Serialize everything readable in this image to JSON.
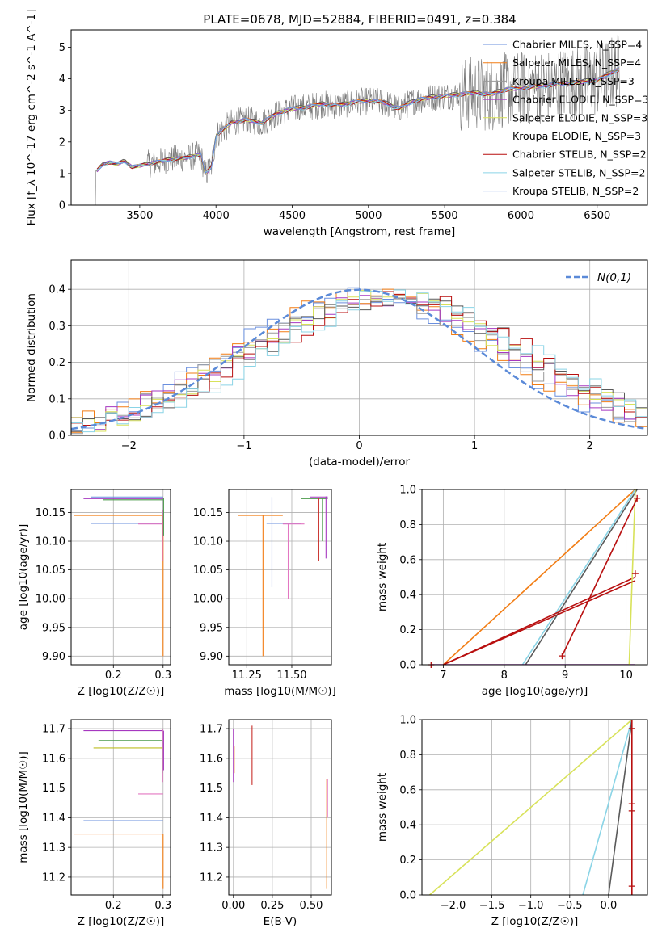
{
  "figure": {
    "title": "PLATE=0678, MJD=52884, FIBERID=0491, z=0.384"
  },
  "colors": {
    "series": [
      "#6a8fde",
      "#f27d14",
      "#999999",
      "#a638c0",
      "#d8e25a",
      "#5a5a5a",
      "#b80f0f",
      "#8ad4e6"
    ],
    "ssp_marks": [
      "#6a8fde",
      "#f27d14",
      "#4a9a4a",
      "#c9302c",
      "#a638c0",
      "#8b5a40",
      "#e377c2",
      "#7f7f7f",
      "#bcbd22",
      "#17becf"
    ]
  },
  "legend_spectrum": [
    "Chabrier MILES, N_SSP=4",
    "Salpeter MILES, N_SSP=4",
    "Kroupa MILES, N_SSP=3",
    "Chabrier ELODIE, N_SSP=3",
    "Salpeter ELODIE, N_SSP=3",
    "Kroupa ELODIE, N_SSP=3",
    "Chabrier STELIB, N_SSP=2",
    "Salpeter STELIB, N_SSP=2",
    "Kroupa STELIB, N_SSP=2"
  ],
  "chart_data": [
    {
      "id": "spectrum",
      "type": "line",
      "xlabel": "wavelength [Angstrom, rest frame]",
      "ylabel": "Flux [f_λ 10^-17 erg cm^-2 s^-1 A^-1]",
      "xlim": [
        3050,
        6830
      ],
      "ylim": [
        0,
        5.55
      ],
      "xticks": [
        3500,
        4000,
        4500,
        5000,
        5500,
        6000,
        6500
      ],
      "yticks": [
        0,
        1,
        2,
        3,
        4,
        5
      ],
      "grid": false,
      "legend_position": "right",
      "model_x": [
        3220,
        3260,
        3300,
        3350,
        3400,
        3450,
        3500,
        3550,
        3600,
        3700,
        3800,
        3900,
        3930,
        3970,
        4000,
        4100,
        4200,
        4300,
        4400,
        4500,
        4600,
        4700,
        4800,
        4900,
        5000,
        5100,
        5200,
        5300,
        5400,
        5500,
        5600,
        5700,
        5800,
        5900,
        6000,
        6100,
        6200,
        6300,
        6400,
        6500,
        6600,
        6650
      ],
      "model_y": [
        1.1,
        1.3,
        1.35,
        1.3,
        1.4,
        1.2,
        1.25,
        1.3,
        1.35,
        1.45,
        1.5,
        1.6,
        1.0,
        1.2,
        2.2,
        2.6,
        2.7,
        2.6,
        2.9,
        3.05,
        3.1,
        3.2,
        3.15,
        3.25,
        3.3,
        3.25,
        3.05,
        3.3,
        3.4,
        3.45,
        3.5,
        3.55,
        3.5,
        3.65,
        3.7,
        3.75,
        3.8,
        3.85,
        3.9,
        3.95,
        4.2,
        4.3
      ],
      "series_offsets": [
        0.08,
        0.12,
        0.15,
        0.0,
        0.05,
        0.2,
        -0.05,
        -0.12,
        0.1
      ]
    },
    {
      "id": "residuals",
      "type": "line",
      "xlabel": "(data-model)/error",
      "ylabel": "Normed distribution",
      "xlim": [
        -2.5,
        2.5
      ],
      "ylim": [
        0,
        0.48
      ],
      "xticks": [
        -2,
        -1,
        0,
        1,
        2
      ],
      "yticks": [
        0.0,
        0.1,
        0.2,
        0.3,
        0.4
      ],
      "grid": true,
      "legend": "N(0,1)",
      "legend_position": "top-right",
      "gaussian": {
        "mean": 0,
        "sigma": 1,
        "color": "#5b8ad8"
      },
      "hist_bin_width": 0.1,
      "hist_shape_peak": 0.38
    },
    {
      "id": "age-vs-Z",
      "type": "scatter",
      "xlabel": "Z [log10(Z/Z☉)]",
      "ylabel": "age  [log10(age/yr)]",
      "xlim": [
        0.115,
        0.315
      ],
      "ylim": [
        9.885,
        10.19
      ],
      "xticks": [
        0.2,
        0.3
      ],
      "yticks": [
        9.9,
        9.95,
        10.0,
        10.05,
        10.1,
        10.15
      ],
      "grid": true,
      "hlines": [
        {
          "y": 10.177,
          "x0": 0.155,
          "x1": 0.3,
          "c": 0
        },
        {
          "y": 10.174,
          "x0": 0.14,
          "x1": 0.3,
          "c": 4
        },
        {
          "y": 10.172,
          "x0": 0.18,
          "x1": 0.3,
          "c": 2
        },
        {
          "y": 10.145,
          "x0": 0.12,
          "x1": 0.3,
          "c": 1
        },
        {
          "y": 10.131,
          "x0": 0.155,
          "x1": 0.3,
          "c": 0
        },
        {
          "y": 10.13,
          "x0": 0.25,
          "x1": 0.3,
          "c": 6
        }
      ],
      "vlines": [
        {
          "x": 0.3,
          "y0": 9.9,
          "y1": 10.145,
          "c": 1
        },
        {
          "x": 0.299,
          "y0": 10.065,
          "y1": 10.155,
          "c": 6
        },
        {
          "x": 0.298,
          "y0": 10.1,
          "y1": 10.177,
          "c": 4
        },
        {
          "x": 0.301,
          "y0": 10.11,
          "y1": 10.175,
          "c": 2
        }
      ]
    },
    {
      "id": "age-vs-mass",
      "type": "scatter",
      "xlabel": "mass [log10(M/M☉)]",
      "ylabel": "",
      "xlim": [
        11.15,
        11.72
      ],
      "ylim": [
        9.885,
        10.19
      ],
      "xticks": [
        11.25,
        11.5
      ],
      "yticks": [
        9.9,
        9.95,
        10.0,
        10.05,
        10.1,
        10.15
      ],
      "grid": true,
      "hlines": [
        {
          "y": 10.145,
          "x0": 11.2,
          "x1": 11.45,
          "c": 1
        },
        {
          "y": 10.131,
          "x0": 11.36,
          "x1": 11.55,
          "c": 0
        },
        {
          "y": 10.13,
          "x0": 11.45,
          "x1": 11.57,
          "c": 6
        },
        {
          "y": 10.177,
          "x0": 11.6,
          "x1": 11.7,
          "c": 4
        },
        {
          "y": 10.174,
          "x0": 11.55,
          "x1": 11.7,
          "c": 2
        }
      ],
      "vlines": [
        {
          "x": 11.34,
          "y0": 9.9,
          "y1": 10.145,
          "c": 1
        },
        {
          "x": 11.39,
          "y0": 10.02,
          "y1": 10.177,
          "c": 0
        },
        {
          "x": 11.48,
          "y0": 10.0,
          "y1": 10.13,
          "c": 6
        },
        {
          "x": 11.65,
          "y0": 10.065,
          "y1": 10.175,
          "c": 3
        },
        {
          "x": 11.69,
          "y0": 10.07,
          "y1": 10.178,
          "c": 4
        },
        {
          "x": 11.67,
          "y0": 10.1,
          "y1": 10.175,
          "c": 2
        }
      ]
    },
    {
      "id": "massweight-vs-age",
      "type": "line",
      "xlabel": "age  [log10(age/yr)]",
      "ylabel": "mass weight",
      "xlim": [
        6.65,
        10.35
      ],
      "ylim": [
        0,
        1.0
      ],
      "xticks": [
        7,
        8,
        9,
        10
      ],
      "yticks": [
        0.0,
        0.2,
        0.4,
        0.6,
        0.8,
        1.0
      ],
      "grid": true,
      "curves": [
        {
          "x": [
            7.0,
            10.15
          ],
          "y": [
            0.0,
            1.0
          ],
          "c": 1
        },
        {
          "x": [
            8.3,
            10.15
          ],
          "y": [
            0.0,
            1.0
          ],
          "c": 7
        },
        {
          "x": [
            8.35,
            10.18
          ],
          "y": [
            0.0,
            1.0
          ],
          "c": 5
        },
        {
          "x": [
            7.0,
            10.15
          ],
          "y": [
            0.0,
            0.5
          ],
          "c": 6
        },
        {
          "x": [
            6.8,
            10.15
          ],
          "y": [
            0.0,
            0.0
          ],
          "c": 3
        },
        {
          "x": [
            10.05,
            10.15
          ],
          "y": [
            0.0,
            1.0
          ],
          "c": 4
        },
        {
          "x": [
            8.95,
            10.18
          ],
          "y": [
            0.05,
            0.95
          ],
          "c": 6
        },
        {
          "x": [
            7.0,
            10.15
          ],
          "y": [
            0.0,
            0.48
          ],
          "c": 6
        }
      ],
      "markers": [
        {
          "x": 8.95,
          "y": 0.05
        },
        {
          "x": 10.18,
          "y": 0.95
        },
        {
          "x": 10.15,
          "y": 0.52
        },
        {
          "x": 6.8,
          "y": 0.0
        }
      ]
    },
    {
      "id": "mass-vs-Z",
      "type": "scatter",
      "xlabel": "Z [log10(Z/Z☉)]",
      "ylabel": "mass [log10(M/M☉)]",
      "xlim": [
        0.115,
        0.315
      ],
      "ylim": [
        11.14,
        11.73
      ],
      "xticks": [
        0.2,
        0.3
      ],
      "yticks": [
        11.2,
        11.3,
        11.4,
        11.5,
        11.6,
        11.7
      ],
      "grid": true,
      "hlines": [
        {
          "y": 11.693,
          "x0": 0.14,
          "x1": 0.3,
          "c": 4
        },
        {
          "y": 11.66,
          "x0": 0.17,
          "x1": 0.3,
          "c": 2
        },
        {
          "y": 11.635,
          "x0": 0.16,
          "x1": 0.3,
          "c": 8
        },
        {
          "y": 11.48,
          "x0": 0.25,
          "x1": 0.3,
          "c": 6
        },
        {
          "y": 11.39,
          "x0": 0.14,
          "x1": 0.3,
          "c": 0
        },
        {
          "y": 11.345,
          "x0": 0.12,
          "x1": 0.3,
          "c": 1
        }
      ],
      "vlines": [
        {
          "x": 0.3,
          "y0": 11.16,
          "y1": 11.345,
          "c": 1
        },
        {
          "x": 0.299,
          "y0": 11.52,
          "y1": 11.7,
          "c": 6
        },
        {
          "x": 0.301,
          "y0": 11.56,
          "y1": 11.693,
          "c": 4
        },
        {
          "x": 0.298,
          "y0": 11.55,
          "y1": 11.66,
          "c": 2
        }
      ]
    },
    {
      "id": "mass-vs-EBV",
      "type": "scatter",
      "xlabel": "E(B-V)",
      "ylabel": "",
      "xlim": [
        -0.03,
        0.63
      ],
      "ylim": [
        11.14,
        11.73
      ],
      "xticks": [
        0.0,
        0.25,
        0.5
      ],
      "yticks": [
        11.2,
        11.3,
        11.4,
        11.5,
        11.6,
        11.7
      ],
      "grid": true,
      "vlines": [
        {
          "x": 0.0,
          "y0": 11.52,
          "y1": 11.7,
          "c": 4
        },
        {
          "x": 0.005,
          "y0": 11.55,
          "y1": 11.64,
          "c": 1
        },
        {
          "x": 0.12,
          "y0": 11.51,
          "y1": 11.71,
          "c": 3
        },
        {
          "x": 0.6,
          "y0": 11.16,
          "y1": 11.53,
          "c": 1
        },
        {
          "x": 0.605,
          "y0": 11.4,
          "y1": 11.53,
          "c": 6
        }
      ]
    },
    {
      "id": "massweight-vs-Z",
      "type": "line",
      "xlabel": "Z [log10(Z/Z☉)]",
      "ylabel": "mass weight",
      "xlim": [
        -2.4,
        0.5
      ],
      "ylim": [
        0,
        1.0
      ],
      "xticks": [
        -2.0,
        -1.5,
        -1.0,
        -0.5,
        0.0
      ],
      "yticks": [
        0.0,
        0.2,
        0.4,
        0.6,
        0.8,
        1.0
      ],
      "grid": true,
      "curves": [
        {
          "x": [
            -2.3,
            0.3
          ],
          "y": [
            0.0,
            1.0
          ],
          "c": 4
        },
        {
          "x": [
            -0.33,
            0.3
          ],
          "y": [
            0.0,
            1.0
          ],
          "c": 7
        },
        {
          "x": [
            0.0,
            0.3
          ],
          "y": [
            0.0,
            1.0
          ],
          "c": 5
        },
        {
          "x": [
            0.3,
            0.3
          ],
          "y": [
            0.0,
            1.0
          ],
          "c": 6
        }
      ],
      "markers": [
        {
          "x": 0.3,
          "y": 0.95
        },
        {
          "x": 0.3,
          "y": 0.52
        },
        {
          "x": 0.3,
          "y": 0.48
        },
        {
          "x": 0.3,
          "y": 0.05
        }
      ]
    }
  ]
}
